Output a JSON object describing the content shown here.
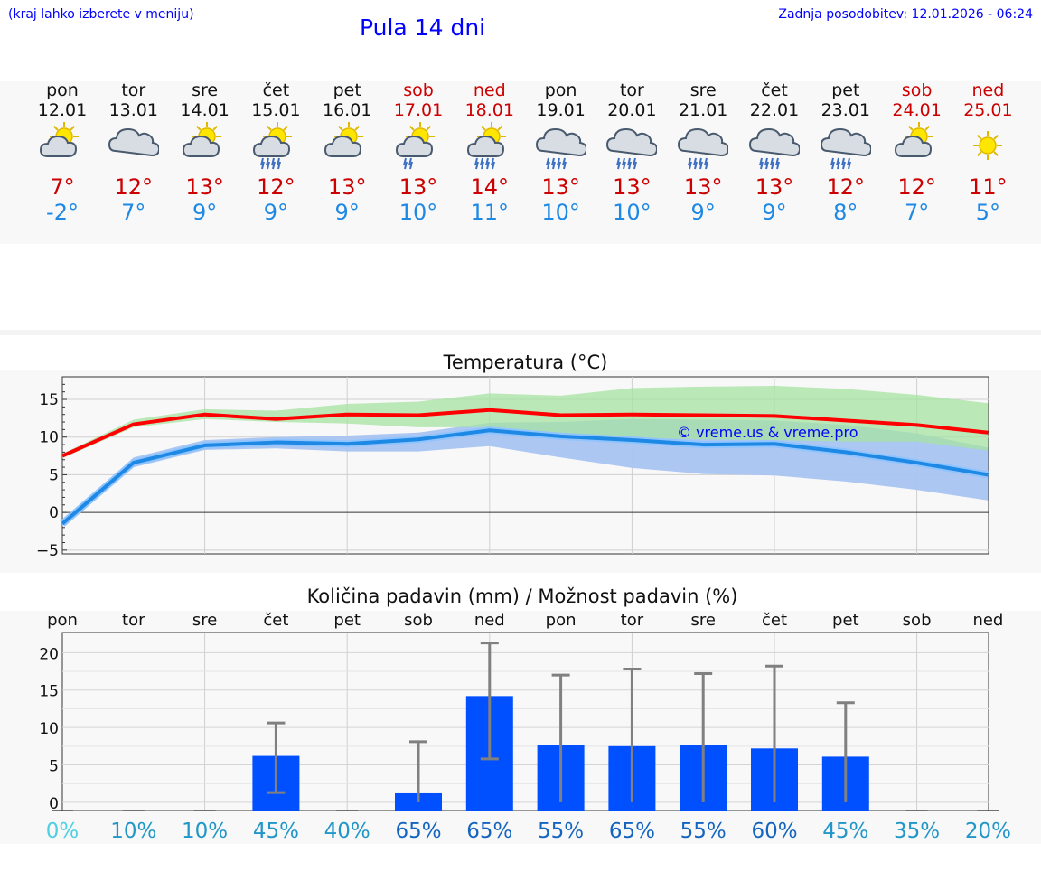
{
  "header": {
    "note": "(kraj lahko izberete v meniju)",
    "title": "Pula 14 dni",
    "updated": "Zadnja posodobitev: 12.01.2026 - 06:24"
  },
  "days": [
    {
      "name": "pon",
      "date": "12.01",
      "max": "7°",
      "min": "-2°",
      "icon": "sun-cloud-icon",
      "weekend": false
    },
    {
      "name": "tor",
      "date": "13.01",
      "max": "12°",
      "min": "7°",
      "icon": "cloud-icon",
      "weekend": false
    },
    {
      "name": "sre",
      "date": "14.01",
      "max": "13°",
      "min": "9°",
      "icon": "sun-cloud-icon",
      "weekend": false
    },
    {
      "name": "čet",
      "date": "15.01",
      "max": "12°",
      "min": "9°",
      "icon": "sun-cloud-rain-icon",
      "weekend": false
    },
    {
      "name": "pet",
      "date": "16.01",
      "max": "13°",
      "min": "9°",
      "icon": "sun-cloud-icon",
      "weekend": false
    },
    {
      "name": "sob",
      "date": "17.01",
      "max": "13°",
      "min": "10°",
      "icon": "sun-cloud-light-rain-icon",
      "weekend": true
    },
    {
      "name": "ned",
      "date": "18.01",
      "max": "14°",
      "min": "11°",
      "icon": "sun-cloud-rain-icon",
      "weekend": true
    },
    {
      "name": "pon",
      "date": "19.01",
      "max": "13°",
      "min": "10°",
      "icon": "cloud-rain-icon",
      "weekend": false
    },
    {
      "name": "tor",
      "date": "20.01",
      "max": "13°",
      "min": "10°",
      "icon": "cloud-rain-icon",
      "weekend": false
    },
    {
      "name": "sre",
      "date": "21.01",
      "max": "13°",
      "min": "9°",
      "icon": "cloud-rain-icon",
      "weekend": false
    },
    {
      "name": "čet",
      "date": "22.01",
      "max": "13°",
      "min": "9°",
      "icon": "cloud-rain-icon",
      "weekend": false
    },
    {
      "name": "pet",
      "date": "23.01",
      "max": "12°",
      "min": "8°",
      "icon": "cloud-rain-icon",
      "weekend": false
    },
    {
      "name": "sob",
      "date": "24.01",
      "max": "12°",
      "min": "7°",
      "icon": "sun-cloud-icon",
      "weekend": true
    },
    {
      "name": "ned",
      "date": "25.01",
      "max": "11°",
      "min": "5°",
      "icon": "sun-icon",
      "weekend": true
    }
  ],
  "colors": {
    "max": "#cc0000",
    "min": "#1e88e5",
    "header_text": "#0000ff",
    "bar": "#0050ff",
    "error_bar": "#808080",
    "max_band": "#a6e3a1",
    "min_band": "#a8c4f0",
    "overlap_band": "#7fc3a3"
  },
  "chart_data": [
    {
      "type": "line",
      "title": "Temperatura (°C)",
      "watermark": "© vreme.us & vreme.pro",
      "yticks": [
        15,
        10,
        5,
        0,
        -5
      ],
      "ytick_labels": [
        "15",
        "10",
        "5",
        "0",
        "−5"
      ],
      "ylim": [
        -5.5,
        18
      ],
      "series": [
        {
          "name": "max",
          "values": [
            7.5,
            11.7,
            13.0,
            12.4,
            13.0,
            12.9,
            13.6,
            12.9,
            13.0,
            12.9,
            12.8,
            12.2,
            11.6,
            10.6
          ]
        },
        {
          "name": "min",
          "values": [
            -1.5,
            6.6,
            8.9,
            9.3,
            9.1,
            9.7,
            10.9,
            10.1,
            9.6,
            9.0,
            9.1,
            8.0,
            6.6,
            5.0
          ]
        }
      ],
      "bands": [
        {
          "name": "max_range",
          "low": [
            7.2,
            11.3,
            12.4,
            12.0,
            11.8,
            11.3,
            11.3,
            10.6,
            9.9,
            9.7,
            9.6,
            9.4,
            9.4,
            8.2
          ],
          "high": [
            7.8,
            12.3,
            13.7,
            13.5,
            14.4,
            14.7,
            15.8,
            15.5,
            16.5,
            16.7,
            16.8,
            16.4,
            15.6,
            14.5
          ]
        },
        {
          "name": "min_range",
          "low": [
            -1.8,
            6.0,
            8.3,
            8.5,
            8.1,
            8.1,
            8.8,
            7.3,
            5.9,
            5.1,
            4.9,
            4.1,
            3.0,
            1.6
          ],
          "high": [
            -1.2,
            7.3,
            9.6,
            10.0,
            10.2,
            10.6,
            11.9,
            12.0,
            12.4,
            12.3,
            12.2,
            11.6,
            10.5,
            8.6
          ]
        }
      ]
    },
    {
      "type": "bar",
      "title": "Količina padavin (mm) / Možnost padavin (%)",
      "categories": [
        "pon",
        "tor",
        "sre",
        "čet",
        "pet",
        "sob",
        "ned",
        "pon",
        "tor",
        "sre",
        "čet",
        "pet",
        "sob",
        "ned"
      ],
      "values": [
        0,
        0,
        0,
        6.2,
        0,
        1.2,
        14.2,
        7.7,
        7.5,
        7.7,
        7.2,
        6.1,
        0,
        0
      ],
      "err_low": [
        0,
        0,
        0,
        1.3,
        0,
        0,
        5.8,
        0,
        0,
        0,
        0,
        0,
        0,
        0
      ],
      "err_high": [
        0,
        0,
        0,
        10.6,
        0,
        8.1,
        21.3,
        17.0,
        17.8,
        17.2,
        18.2,
        13.3,
        0,
        0
      ],
      "yticks": [
        20,
        15,
        10,
        5,
        0
      ],
      "ytick_labels": [
        "20",
        "15",
        "10",
        "5",
        "0"
      ],
      "ylim": [
        -1.1,
        22.7
      ],
      "probabilities": [
        "0%",
        "10%",
        "10%",
        "45%",
        "40%",
        "65%",
        "65%",
        "55%",
        "65%",
        "55%",
        "60%",
        "45%",
        "35%",
        "20%"
      ],
      "probability_colors": [
        "#4dd0e1",
        "#2196c8",
        "#2196c8",
        "#2196c8",
        "#2196c8",
        "#1565c0",
        "#1565c0",
        "#1565c0",
        "#1565c0",
        "#1565c0",
        "#1565c0",
        "#2196c8",
        "#2196c8",
        "#2196c8"
      ]
    }
  ]
}
